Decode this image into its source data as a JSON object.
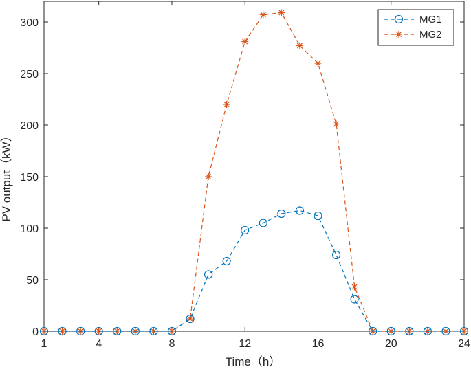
{
  "chart_data": {
    "type": "line",
    "xlabel": "Time（h）",
    "ylabel": "PV output（kW）",
    "xlim": [
      1,
      24
    ],
    "ylim": [
      0,
      320
    ],
    "xticks": [
      1,
      4,
      8,
      12,
      16,
      20,
      24
    ],
    "yticks": [
      0,
      50,
      100,
      150,
      200,
      250,
      300
    ],
    "grid": false,
    "legend_position": "top-right",
    "x": [
      1,
      2,
      3,
      4,
      5,
      6,
      7,
      8,
      9,
      10,
      11,
      12,
      13,
      14,
      15,
      16,
      17,
      18,
      19,
      20,
      21,
      22,
      23,
      24
    ],
    "series": [
      {
        "name": "MG1",
        "marker": "circle",
        "line": "dashed",
        "color": "#0072BD",
        "values": [
          0,
          0,
          0,
          0,
          0,
          0,
          0,
          0,
          12,
          55,
          68,
          98,
          105,
          114,
          117,
          112,
          74,
          31,
          0,
          0,
          0,
          0,
          0,
          0
        ]
      },
      {
        "name": "MG2",
        "marker": "asterisk",
        "line": "dashed",
        "color": "#D95319",
        "values": [
          0,
          0,
          0,
          0,
          0,
          0,
          0,
          0,
          12,
          150,
          220,
          281,
          307,
          309,
          277,
          260,
          201,
          43,
          0,
          0,
          0,
          0,
          0,
          0
        ]
      }
    ]
  }
}
